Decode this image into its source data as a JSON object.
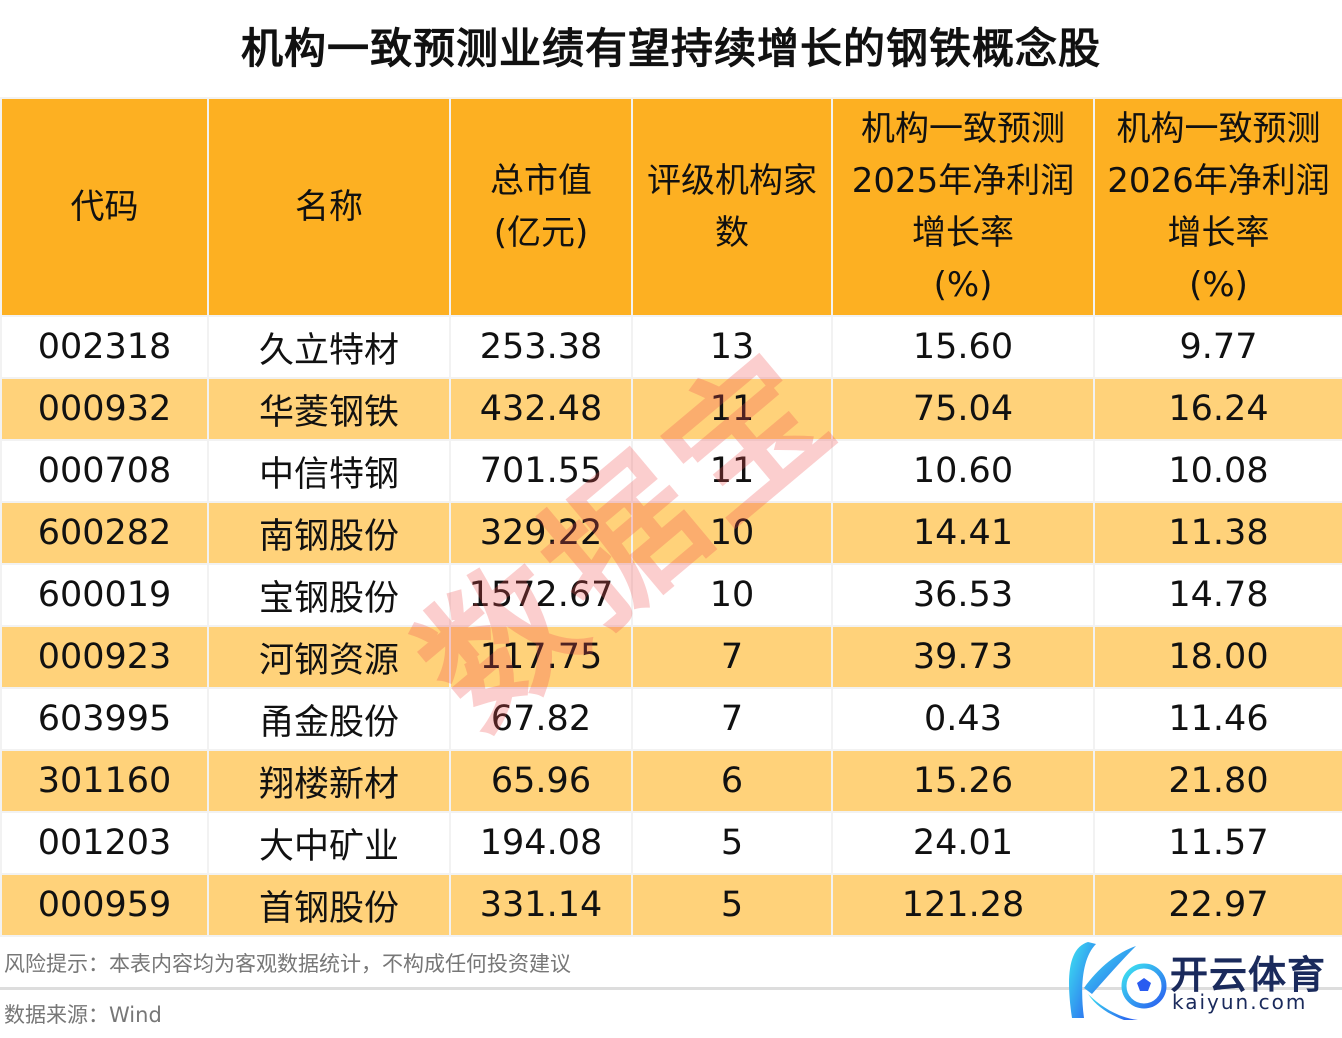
{
  "title": "机构一致预测业绩有望持续增长的钢铁概念股",
  "table": {
    "headers": [
      "代码",
      "名称",
      "总市值\n(亿元)",
      "评级机构家\n数",
      "机构一致预测\n2025年净利润\n增长率\n(%)",
      "机构一致预测\n2026年净利润\n增长率\n(%)"
    ],
    "rows": [
      [
        "002318",
        "久立特材",
        "253.38",
        "13",
        "15.60",
        "9.77"
      ],
      [
        "000932",
        "华菱钢铁",
        "432.48",
        "11",
        "75.04",
        "16.24"
      ],
      [
        "000708",
        "中信特钢",
        "701.55",
        "11",
        "10.60",
        "10.08"
      ],
      [
        "600282",
        "南钢股份",
        "329.22",
        "10",
        "14.41",
        "11.38"
      ],
      [
        "600019",
        "宝钢股份",
        "1572.67",
        "10",
        "36.53",
        "14.78"
      ],
      [
        "000923",
        "河钢资源",
        "117.75",
        "7",
        "39.73",
        "18.00"
      ],
      [
        "603995",
        "甬金股份",
        "67.82",
        "7",
        "0.43",
        "11.46"
      ],
      [
        "301160",
        "翔楼新材",
        "65.96",
        "6",
        "15.26",
        "21.80"
      ],
      [
        "001203",
        "大中矿业",
        "194.08",
        "5",
        "24.01",
        "11.57"
      ],
      [
        "000959",
        "首钢股份",
        "331.14",
        "5",
        "121.28",
        "22.97"
      ]
    ]
  },
  "watermark": "数据宝",
  "footer": {
    "risk": "风险提示：本表内容均为客观数据统计，不构成任何投资建议",
    "source": "数据来源：Wind"
  },
  "logo": {
    "cn": "开云体育",
    "en": "kaiyun.com"
  },
  "colors": {
    "header": "#FDB022",
    "alt_row": "#FFD27A",
    "watermark": "#F05050"
  }
}
